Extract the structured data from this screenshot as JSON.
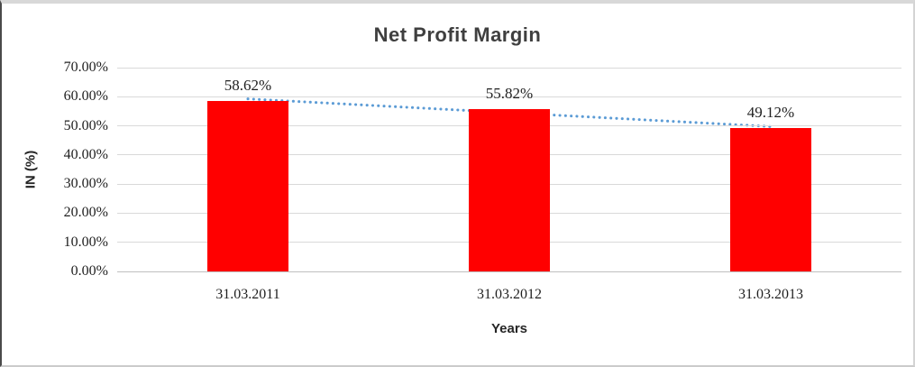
{
  "chart_data": {
    "type": "bar",
    "title": "Net Profit Margin",
    "xlabel": "Years",
    "ylabel": "IN (%)",
    "categories": [
      "31.03.2011",
      "31.03.2012",
      "31.03.2013"
    ],
    "values": [
      58.62,
      55.82,
      49.12
    ],
    "data_labels": [
      "58.62%",
      "55.82%",
      "49.12%"
    ],
    "ylim": [
      0,
      70
    ],
    "ytick_step": 10,
    "ytick_labels": [
      "0.00%",
      "10.00%",
      "20.00%",
      "30.00%",
      "40.00%",
      "50.00%",
      "60.00%",
      "70.00%"
    ],
    "grid": true,
    "legend": "none",
    "bar_color": "#FF0000",
    "gridline_color": "#D9D9D9",
    "axis_line_color": "#BFBFBF",
    "trendline": {
      "type": "linear",
      "style": "dotted",
      "color": "#5B9BD5",
      "start_value": 59.27,
      "end_value": 49.77
    }
  }
}
